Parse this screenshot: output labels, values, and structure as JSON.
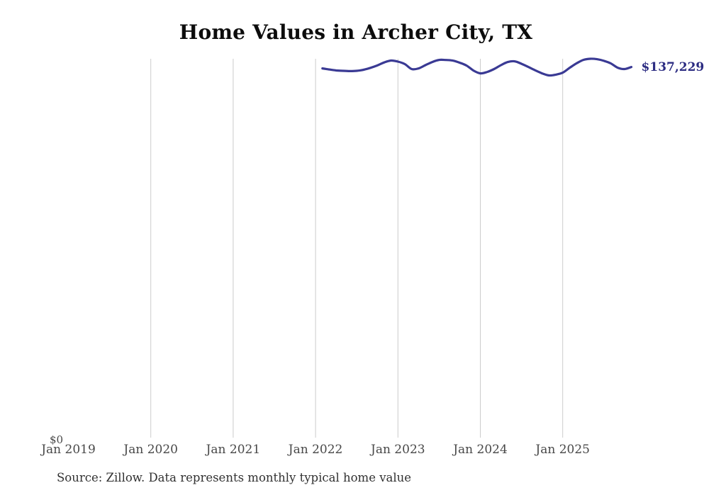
{
  "chart_data": {
    "type": "line",
    "title": "Home Values in Archer City, TX",
    "xlabel": "",
    "ylabel": "",
    "ylim": [
      0,
      140366
    ],
    "grid": "vertical-only",
    "legend_position": "none",
    "gridline_color": "#cccccc",
    "line_color": "#3a3a94",
    "end_label": "$137,229",
    "end_label_color": "#2c2c82",
    "y_zero_label": "$0",
    "source_note": "Source: Zillow. Data represents monthly typical home value",
    "x_ticks": [
      {
        "label": "Jan 2019",
        "gridline": false
      },
      {
        "label": "Jan 2020",
        "gridline": true
      },
      {
        "label": "Jan 2021",
        "gridline": true
      },
      {
        "label": "Jan 2022",
        "gridline": true
      },
      {
        "label": "Jan 2023",
        "gridline": true
      },
      {
        "label": "Jan 2024",
        "gridline": true
      },
      {
        "label": "Jan 2025",
        "gridline": true
      }
    ],
    "series": [
      {
        "name": "Monthly typical home value",
        "x": [
          "2022-02",
          "2022-03",
          "2022-04",
          "2022-05",
          "2022-06",
          "2022-07",
          "2022-08",
          "2022-09",
          "2022-10",
          "2022-11",
          "2022-12",
          "2023-01",
          "2023-02",
          "2023-03",
          "2023-04",
          "2023-05",
          "2023-06",
          "2023-07",
          "2023-08",
          "2023-09",
          "2023-10",
          "2023-11",
          "2023-12",
          "2024-01",
          "2024-02",
          "2024-03",
          "2024-04",
          "2024-05",
          "2024-06",
          "2024-07",
          "2024-08",
          "2024-09",
          "2024-10",
          "2024-11",
          "2024-12",
          "2025-01",
          "2025-02",
          "2025-03",
          "2025-04",
          "2025-05",
          "2025-06",
          "2025-07",
          "2025-08",
          "2025-09",
          "2025-10",
          "2025-11"
        ],
        "values": [
          136700,
          136300,
          135950,
          135800,
          135700,
          135800,
          136200,
          136900,
          137800,
          138900,
          139600,
          139200,
          138300,
          136450,
          136700,
          137900,
          139060,
          139840,
          139800,
          139580,
          138800,
          137750,
          135920,
          134880,
          135400,
          136450,
          137900,
          139060,
          139320,
          138400,
          137230,
          136000,
          134880,
          134100,
          134400,
          135140,
          136900,
          138540,
          139840,
          140250,
          140100,
          139500,
          138540,
          136970,
          136450,
          137229
        ]
      }
    ]
  }
}
